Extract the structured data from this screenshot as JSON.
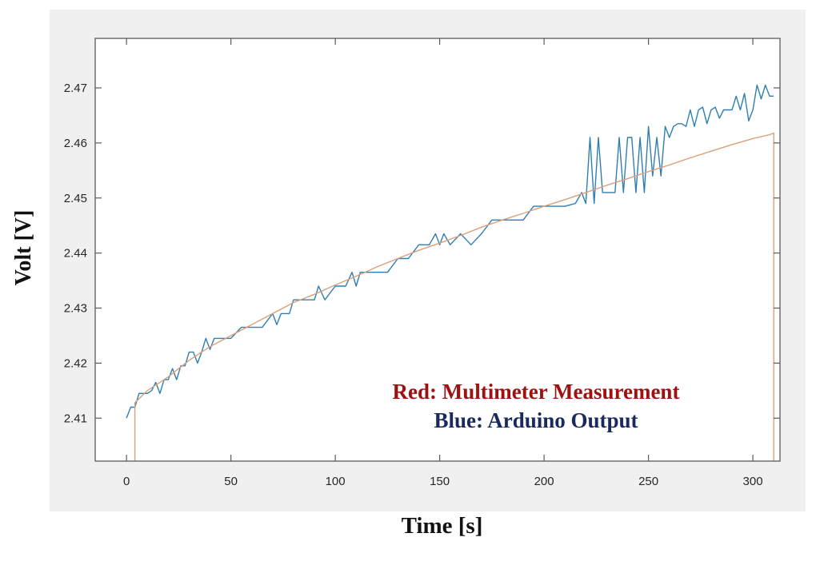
{
  "labels": {
    "ylabel": "Volt [V]",
    "xlabel": "Time [s]",
    "legend_red": "Red: Multimeter Measurement",
    "legend_blue": "Blue: Arduino Output"
  },
  "colors": {
    "panel_bg": "#f0f0f0",
    "plot_bg": "#ffffff",
    "axis": "#5a5a5a",
    "series_blue": "#2f7fb0",
    "series_red": "#d9a07a",
    "legend_red": "#a01010",
    "legend_blue": "#1a2a5a",
    "corner_shape": "#5f676c"
  },
  "chart_data": {
    "type": "line",
    "title": "",
    "xlabel": "Time [s]",
    "ylabel": "Volt [V]",
    "xlim": [
      -15,
      313
    ],
    "ylim": [
      2.4022,
      2.479
    ],
    "xticks": [
      0,
      50,
      100,
      150,
      200,
      250,
      300
    ],
    "yticks": [
      2.41,
      2.42,
      2.43,
      2.44,
      2.45,
      2.46,
      2.47
    ],
    "ytick_labels": [
      "2.41",
      "2.42",
      "2.43",
      "2.44",
      "2.45",
      "2.46",
      "2.47"
    ],
    "grid": false,
    "legend_position": "inside lower right (text annotation)",
    "series": [
      {
        "name": "Arduino Output (Blue)",
        "x": [
          0,
          2,
          4,
          6,
          8,
          10,
          12,
          14,
          16,
          18,
          20,
          22,
          24,
          26,
          28,
          30,
          32,
          34,
          36,
          38,
          40,
          42,
          44,
          46,
          48,
          50,
          55,
          60,
          65,
          70,
          72,
          74,
          76,
          78,
          80,
          85,
          88,
          90,
          92,
          95,
          100,
          105,
          108,
          110,
          112,
          115,
          120,
          125,
          130,
          135,
          140,
          145,
          148,
          150,
          152,
          155,
          160,
          165,
          170,
          175,
          180,
          185,
          190,
          195,
          200,
          205,
          210,
          215,
          218,
          220,
          222,
          224,
          226,
          228,
          230,
          232,
          234,
          236,
          238,
          240,
          242,
          244,
          246,
          248,
          250,
          252,
          254,
          256,
          258,
          260,
          262,
          264,
          266,
          268,
          270,
          272,
          274,
          276,
          278,
          280,
          282,
          284,
          286,
          288,
          290,
          292,
          294,
          296,
          298,
          300,
          302,
          304,
          306,
          308,
          310
        ],
        "y": [
          2.41,
          2.412,
          2.412,
          2.4145,
          2.4145,
          2.4145,
          2.415,
          2.4165,
          2.4145,
          2.417,
          2.417,
          2.419,
          2.417,
          2.4195,
          2.4195,
          2.422,
          2.422,
          2.42,
          2.422,
          2.4245,
          2.4225,
          2.4245,
          2.4245,
          2.4245,
          2.4245,
          2.4245,
          2.4265,
          2.4265,
          2.4265,
          2.429,
          2.427,
          2.429,
          2.429,
          2.429,
          2.4315,
          2.4315,
          2.4315,
          2.4315,
          2.434,
          2.4315,
          2.434,
          2.434,
          2.4365,
          2.434,
          2.4365,
          2.4365,
          2.4365,
          2.4365,
          2.439,
          2.439,
          2.4415,
          2.4415,
          2.4435,
          2.4415,
          2.4435,
          2.4415,
          2.4435,
          2.4415,
          2.4435,
          2.446,
          2.446,
          2.446,
          2.446,
          2.4485,
          2.4485,
          2.4485,
          2.4485,
          2.449,
          2.451,
          2.449,
          2.461,
          2.449,
          2.461,
          2.451,
          2.451,
          2.451,
          2.451,
          2.461,
          2.451,
          2.461,
          2.461,
          2.451,
          2.461,
          2.451,
          2.463,
          2.454,
          2.461,
          2.454,
          2.463,
          2.461,
          2.463,
          2.4635,
          2.4635,
          2.463,
          2.466,
          2.463,
          2.466,
          2.4665,
          2.4635,
          2.466,
          2.4665,
          2.4645,
          2.466,
          2.466,
          2.466,
          2.4685,
          2.466,
          2.469,
          2.464,
          2.466,
          2.4705,
          2.468,
          2.4705,
          2.4685,
          2.4685
        ],
        "color": "#2f7fb0"
      },
      {
        "name": "Multimeter Measurement (Red)",
        "x": [
          4,
          4,
          10,
          20,
          30,
          40,
          50,
          60,
          70,
          80,
          90,
          100,
          110,
          120,
          130,
          140,
          150,
          160,
          170,
          180,
          190,
          200,
          210,
          220,
          230,
          240,
          250,
          260,
          270,
          280,
          290,
          300,
          308,
          310,
          310
        ],
        "y": [
          2.4022,
          2.4128,
          2.415,
          2.4175,
          2.4205,
          2.423,
          2.425,
          2.427,
          2.429,
          2.431,
          2.4325,
          2.4342,
          2.4358,
          2.4375,
          2.439,
          2.4405,
          2.4418,
          2.4432,
          2.4447,
          2.446,
          2.4472,
          2.4485,
          2.4497,
          2.451,
          2.4523,
          2.4535,
          2.4548,
          2.456,
          2.4573,
          2.4585,
          2.4597,
          2.4608,
          2.4615,
          2.4618,
          2.4022
        ],
        "color": "#d9a07a"
      }
    ]
  }
}
